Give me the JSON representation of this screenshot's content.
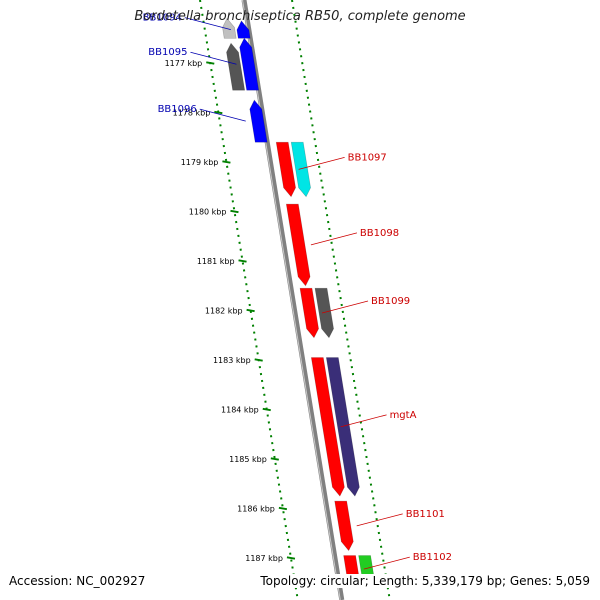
{
  "title": "Bordetella bronchiseptica RB50, complete genome",
  "accession": {
    "label": "Accession:",
    "value": "NC_002927"
  },
  "summary": {
    "topology_label": "Topology:",
    "topology": "circular",
    "length_label": "Length:",
    "length": "5,339,179 bp",
    "genes_label": "Genes:",
    "genes": "5,059"
  },
  "colors": {
    "reverse_label": "#0000b0",
    "forward_label": "#cc0000",
    "tick": "#008000",
    "backbone": "#808080"
  },
  "scale": {
    "unit": "kbp",
    "ticks": [
      {
        "kbp": 1177,
        "label": "1177 kbp"
      },
      {
        "kbp": 1178,
        "label": "1178 kbp"
      },
      {
        "kbp": 1179,
        "label": "1179 kbp"
      },
      {
        "kbp": 1180,
        "label": "1180 kbp"
      },
      {
        "kbp": 1181,
        "label": "1181 kbp"
      },
      {
        "kbp": 1182,
        "label": "1182 kbp"
      },
      {
        "kbp": 1183,
        "label": "1183 kbp"
      },
      {
        "kbp": 1184,
        "label": "1184 kbp"
      },
      {
        "kbp": 1185,
        "label": "1185 kbp"
      },
      {
        "kbp": 1186,
        "label": "1186 kbp"
      },
      {
        "kbp": 1187,
        "label": "1187 kbp"
      }
    ]
  },
  "genes": [
    {
      "name": "BB1094",
      "strand": "reverse",
      "start_kbp": 1176.15,
      "end_kbp": 1176.5,
      "lane": 2,
      "color": "#0000ff",
      "labeled": true
    },
    {
      "name": "",
      "strand": "reverse",
      "start_kbp": 1176.1,
      "end_kbp": 1176.5,
      "lane": 1,
      "color": "#c0c0c0",
      "labeled": false
    },
    {
      "name": "BB1095",
      "strand": "reverse",
      "start_kbp": 1176.5,
      "end_kbp": 1177.55,
      "lane": 2,
      "color": "#0000ff",
      "labeled": true
    },
    {
      "name": "",
      "strand": "reverse",
      "start_kbp": 1176.6,
      "end_kbp": 1177.55,
      "lane": 1,
      "color": "#555555",
      "labeled": false
    },
    {
      "name": "BB1096",
      "strand": "reverse",
      "start_kbp": 1177.75,
      "end_kbp": 1178.6,
      "lane": 2,
      "color": "#0000ff",
      "labeled": true
    },
    {
      "name": "BB1097",
      "strand": "forward",
      "start_kbp": 1178.6,
      "end_kbp": 1179.7,
      "lane": 1,
      "color": "#ff0000",
      "labeled": true
    },
    {
      "name": "",
      "strand": "forward",
      "start_kbp": 1178.6,
      "end_kbp": 1179.7,
      "lane": 2,
      "color": "#00e5e5",
      "labeled": false
    },
    {
      "name": "BB1098",
      "strand": "forward",
      "start_kbp": 1179.85,
      "end_kbp": 1181.5,
      "lane": 1,
      "color": "#ff0000",
      "labeled": true
    },
    {
      "name": "BB1099",
      "strand": "forward",
      "start_kbp": 1181.55,
      "end_kbp": 1182.55,
      "lane": 1,
      "color": "#ff0000",
      "labeled": true
    },
    {
      "name": "",
      "strand": "forward",
      "start_kbp": 1181.55,
      "end_kbp": 1182.55,
      "lane": 2,
      "color": "#555555",
      "labeled": false
    },
    {
      "name": "mgtA",
      "strand": "forward",
      "start_kbp": 1182.95,
      "end_kbp": 1185.75,
      "lane": 1,
      "color": "#ff0000",
      "labeled": true
    },
    {
      "name": "",
      "strand": "forward",
      "start_kbp": 1182.95,
      "end_kbp": 1185.75,
      "lane": 2,
      "color": "#3a2e78",
      "labeled": false
    },
    {
      "name": "BB1101",
      "strand": "forward",
      "start_kbp": 1185.85,
      "end_kbp": 1186.85,
      "lane": 1,
      "color": "#ff0000",
      "labeled": true
    },
    {
      "name": "BB1102",
      "strand": "forward",
      "start_kbp": 1186.95,
      "end_kbp": 1187.5,
      "lane": 1,
      "color": "#ff0000",
      "labeled": true
    },
    {
      "name": "",
      "strand": "forward",
      "start_kbp": 1186.95,
      "end_kbp": 1187.5,
      "lane": 2,
      "color": "#22cc22",
      "labeled": false
    }
  ]
}
